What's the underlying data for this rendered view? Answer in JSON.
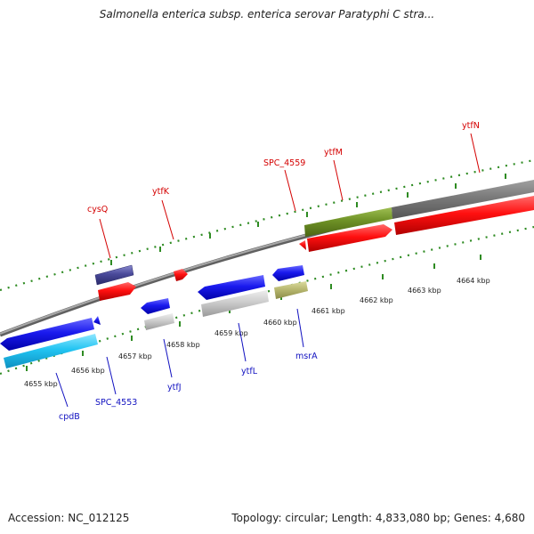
{
  "title": "Salmonella enterica subsp. enterica serovar Paratyphi C stra...",
  "footer": {
    "accession": "Accession: NC_012125",
    "topology": "Topology: circular; Length: 4,833,080 bp; Genes: 4,680"
  },
  "colors": {
    "backbone": "#8a8a8a",
    "tick_dots": "#2e8b22",
    "forward_label": "#d40000",
    "reverse_label": "#1010c0"
  },
  "ticks": [
    "4655 kbp",
    "4656 kbp",
    "4657 kbp",
    "4658 kbp",
    "4659 kbp",
    "4660 kbp",
    "4661 kbp",
    "4662 kbp",
    "4663 kbp",
    "4664 kbp"
  ],
  "forward_genes": [
    {
      "name": "cysQ",
      "color": "#d40000"
    },
    {
      "name": "ytfK",
      "color": "#d40000"
    },
    {
      "name": "SPC_4559",
      "color": "#d40000"
    },
    {
      "name": "ytfM",
      "color": "#d40000"
    },
    {
      "name": "ytfN",
      "color": "#d40000"
    }
  ],
  "reverse_genes": [
    {
      "name": "cpdB",
      "color": "#1010c0"
    },
    {
      "name": "SPC_4553",
      "color": "#1010c0"
    },
    {
      "name": "ytfJ",
      "color": "#1010c0"
    },
    {
      "name": "ytfL",
      "color": "#1010c0"
    },
    {
      "name": "msrA",
      "color": "#1010c0"
    }
  ]
}
